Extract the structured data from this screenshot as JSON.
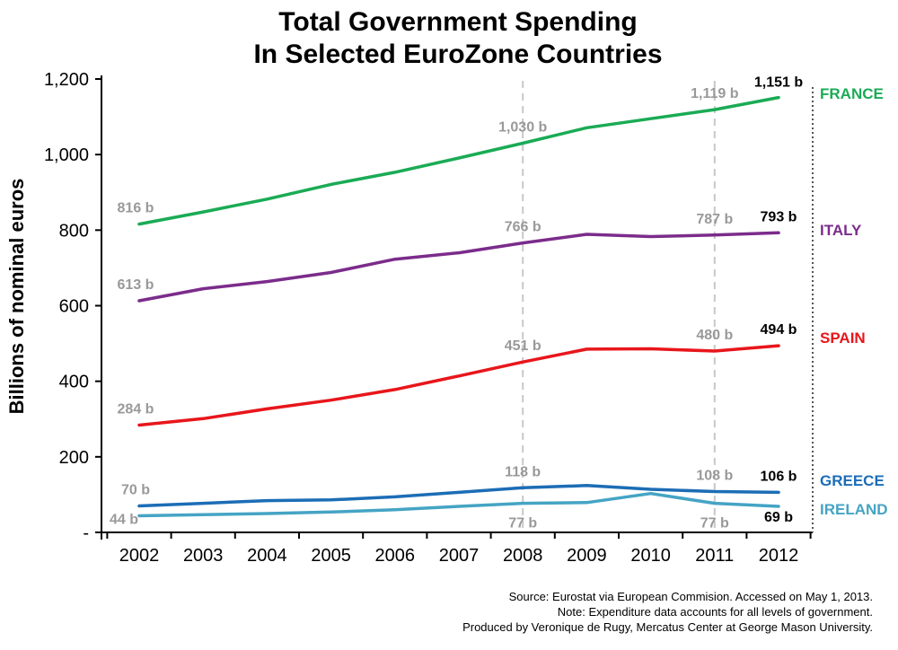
{
  "title": {
    "line1": "Total Government Spending",
    "line2": "In Selected EuroZone Countries"
  },
  "source": {
    "line1": "Source: Eurostat via European Commision. Accessed on May 1, 2013.",
    "line2": "Note: Expenditure data accounts for all levels of government.",
    "line3": "Produced by Veronique de Rugy, Mercatus Center at George Mason University."
  },
  "colors": {
    "label_gray": "#999999",
    "label_black": "#000000",
    "axis": "#000000",
    "guide": "#c8c8c8"
  },
  "chart_data": {
    "type": "line",
    "title": "Total Government Spending In Selected EuroZone Countries",
    "xlabel": "",
    "ylabel": "Billions of nominal euros",
    "ylim": [
      0,
      1200
    ],
    "yticks": [
      {
        "value": 0,
        "label": "-"
      },
      {
        "value": 200,
        "label": "200"
      },
      {
        "value": 400,
        "label": "400"
      },
      {
        "value": 600,
        "label": "600"
      },
      {
        "value": 800,
        "label": "800"
      },
      {
        "value": 1000,
        "label": "1,000"
      },
      {
        "value": 1200,
        "label": "1,200"
      }
    ],
    "categories": [
      "2002",
      "2003",
      "2004",
      "2005",
      "2006",
      "2007",
      "2008",
      "2009",
      "2010",
      "2011",
      "2012"
    ],
    "guide_years": [
      "2008",
      "2011"
    ],
    "grid": false,
    "series": [
      {
        "name": "FRANCE",
        "color": "#1aab55",
        "values": [
          816,
          848,
          882,
          921,
          953,
          991,
          1030,
          1071,
          1095,
          1119,
          1151
        ],
        "annotations": [
          {
            "x": "2002",
            "text": "816 b",
            "style": "gray"
          },
          {
            "x": "2008",
            "text": "1,030 b",
            "style": "gray"
          },
          {
            "x": "2011",
            "text": "1,119 b",
            "style": "gray"
          },
          {
            "x": "2012",
            "text": "1,151 b",
            "style": "black"
          }
        ]
      },
      {
        "name": "ITALY",
        "color": "#7b2c8b",
        "values": [
          613,
          645,
          664,
          688,
          723,
          740,
          766,
          789,
          783,
          787,
          793
        ],
        "annotations": [
          {
            "x": "2002",
            "text": "613 b",
            "style": "gray"
          },
          {
            "x": "2008",
            "text": "766 b",
            "style": "gray"
          },
          {
            "x": "2011",
            "text": "787 b",
            "style": "gray"
          },
          {
            "x": "2012",
            "text": "793 b",
            "style": "black"
          }
        ]
      },
      {
        "name": "SPAIN",
        "color": "#e8161b",
        "values": [
          284,
          301,
          327,
          350,
          378,
          414,
          451,
          485,
          486,
          480,
          494
        ],
        "annotations": [
          {
            "x": "2002",
            "text": "284 b",
            "style": "gray"
          },
          {
            "x": "2008",
            "text": "451 b",
            "style": "gray"
          },
          {
            "x": "2011",
            "text": "480 b",
            "style": "gray"
          },
          {
            "x": "2012",
            "text": "494 b",
            "style": "black"
          }
        ]
      },
      {
        "name": "GREECE",
        "color": "#1c6db5",
        "values": [
          70,
          77,
          84,
          86,
          94,
          106,
          118,
          124,
          114,
          108,
          106
        ],
        "annotations": [
          {
            "x": "2002",
            "text": "70 b",
            "style": "gray"
          },
          {
            "x": "2008",
            "text": "118 b",
            "style": "gray"
          },
          {
            "x": "2011",
            "text": "108 b",
            "style": "gray"
          },
          {
            "x": "2012",
            "text": "106 b",
            "style": "black"
          }
        ]
      },
      {
        "name": "IRELAND",
        "color": "#45a4c4",
        "values": [
          44,
          47,
          50,
          54,
          60,
          69,
          77,
          79,
          103,
          77,
          69
        ],
        "annotations": [
          {
            "x": "2002",
            "text": "44 b",
            "style": "gray"
          },
          {
            "x": "2008",
            "text": "77 b",
            "style": "gray"
          },
          {
            "x": "2011",
            "text": "77 b",
            "style": "gray"
          },
          {
            "x": "2012",
            "text": "69 b",
            "style": "black"
          }
        ]
      }
    ]
  }
}
